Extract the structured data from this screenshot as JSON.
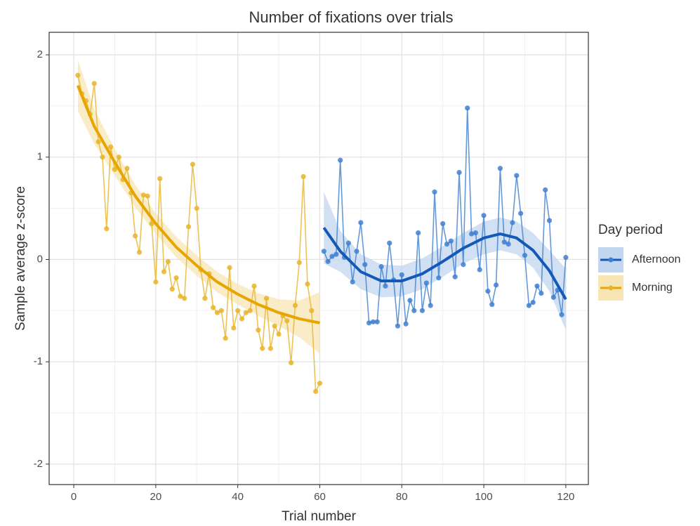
{
  "chart_data": {
    "type": "line",
    "title": "Number of fixations over trials",
    "x_label": "Trial number",
    "y_label": "Sample average z-score",
    "legend_title": "Day period",
    "xlim": [
      -6,
      125.5
    ],
    "ylim": [
      -2.2,
      2.22
    ],
    "xticks": [
      0,
      20,
      40,
      60,
      80,
      100,
      120
    ],
    "yticks": [
      -2,
      -1,
      0,
      1,
      2
    ],
    "minor_xticks": [
      10,
      30,
      50,
      70,
      90,
      110
    ],
    "minor_yticks": [
      -1.5,
      -0.5,
      0.5,
      1.5
    ],
    "grid": true,
    "legend": "right",
    "series": [
      {
        "name": "Afternoon",
        "color": "#3f7fd0",
        "fit_color": "#1459b8",
        "band_color": "#c3d6ef",
        "x": [
          61,
          62,
          63,
          64,
          65,
          66,
          67,
          68,
          69,
          70,
          71,
          72,
          73,
          74,
          75,
          76,
          77,
          78,
          79,
          80,
          81,
          82,
          83,
          84,
          85,
          86,
          87,
          88,
          89,
          90,
          91,
          92,
          93,
          94,
          95,
          96,
          97,
          98,
          99,
          100,
          101,
          102,
          103,
          104,
          105,
          106,
          107,
          108,
          109,
          110,
          111,
          112,
          113,
          114,
          115,
          116,
          117,
          118,
          119,
          120
        ],
        "values": [
          0.08,
          -0.02,
          0.03,
          0.05,
          0.97,
          0.02,
          0.16,
          -0.22,
          0.08,
          0.36,
          -0.05,
          -0.62,
          -0.61,
          -0.61,
          -0.07,
          -0.26,
          0.16,
          -0.2,
          -0.65,
          -0.15,
          -0.63,
          -0.4,
          -0.5,
          0.26,
          -0.5,
          -0.23,
          -0.45,
          0.66,
          -0.18,
          0.35,
          0.15,
          0.18,
          -0.17,
          0.85,
          -0.05,
          1.48,
          0.25,
          0.26,
          -0.1,
          0.43,
          -0.31,
          -0.44,
          -0.25,
          0.89,
          0.17,
          0.15,
          0.36,
          0.82,
          0.45,
          0.04,
          -0.45,
          -0.42,
          -0.26,
          -0.33,
          0.68,
          0.38,
          -0.37,
          -0.3,
          -0.54,
          0.02
        ],
        "fit": {
          "x": [
            61,
            65,
            70,
            75,
            80,
            85,
            90,
            95,
            100,
            104,
            108,
            112,
            116,
            120
          ],
          "values": [
            0.31,
            0.08,
            -0.12,
            -0.21,
            -0.21,
            -0.14,
            -0.02,
            0.11,
            0.21,
            0.25,
            0.21,
            0.09,
            -0.11,
            -0.39
          ],
          "lower": [
            -0.04,
            -0.12,
            -0.29,
            -0.37,
            -0.36,
            -0.29,
            -0.17,
            -0.04,
            0.05,
            0.09,
            0.05,
            -0.08,
            -0.31,
            -0.69
          ],
          "upper": [
            0.66,
            0.28,
            0.05,
            -0.05,
            -0.06,
            0.01,
            0.13,
            0.26,
            0.37,
            0.41,
            0.37,
            0.26,
            0.09,
            -0.09
          ]
        }
      },
      {
        "name": "Morning",
        "color": "#e8b42a",
        "fit_color": "#e6a500",
        "band_color": "#f7e6b4",
        "x": [
          1,
          2,
          3,
          4,
          5,
          6,
          7,
          8,
          9,
          10,
          11,
          12,
          13,
          14,
          15,
          16,
          17,
          18,
          19,
          20,
          21,
          22,
          23,
          24,
          25,
          26,
          27,
          28,
          29,
          30,
          31,
          32,
          33,
          34,
          35,
          36,
          37,
          38,
          39,
          40,
          41,
          42,
          43,
          44,
          45,
          46,
          47,
          48,
          49,
          50,
          51,
          52,
          53,
          54,
          55,
          56,
          57,
          58,
          59,
          60
        ],
        "values": [
          1.8,
          1.62,
          1.55,
          1.42,
          1.72,
          1.15,
          1.0,
          0.3,
          1.1,
          0.88,
          1.0,
          0.78,
          0.89,
          0.65,
          0.23,
          0.07,
          0.63,
          0.62,
          0.35,
          -0.22,
          0.79,
          -0.12,
          -0.02,
          -0.29,
          -0.18,
          -0.36,
          -0.38,
          0.32,
          0.93,
          0.5,
          -0.1,
          -0.38,
          -0.14,
          -0.47,
          -0.52,
          -0.5,
          -0.77,
          -0.08,
          -0.67,
          -0.5,
          -0.58,
          -0.52,
          -0.5,
          -0.26,
          -0.69,
          -0.87,
          -0.38,
          -0.87,
          -0.65,
          -0.73,
          -0.55,
          -0.6,
          -1.01,
          -0.45,
          -0.03,
          0.81,
          -0.24,
          -0.5,
          -1.29,
          -1.21
        ],
        "fit": {
          "x": [
            1,
            5,
            10,
            15,
            20,
            25,
            30,
            35,
            40,
            45,
            50,
            55,
            60
          ],
          "values": [
            1.7,
            1.3,
            0.95,
            0.62,
            0.35,
            0.12,
            -0.06,
            -0.22,
            -0.34,
            -0.44,
            -0.52,
            -0.58,
            -0.62
          ],
          "lower": [
            1.45,
            1.13,
            0.82,
            0.51,
            0.25,
            0.02,
            -0.16,
            -0.32,
            -0.44,
            -0.55,
            -0.65,
            -0.76,
            -0.92
          ],
          "upper": [
            1.95,
            1.47,
            1.08,
            0.73,
            0.45,
            0.22,
            0.04,
            -0.12,
            -0.24,
            -0.33,
            -0.39,
            -0.4,
            -0.32
          ]
        }
      }
    ]
  }
}
